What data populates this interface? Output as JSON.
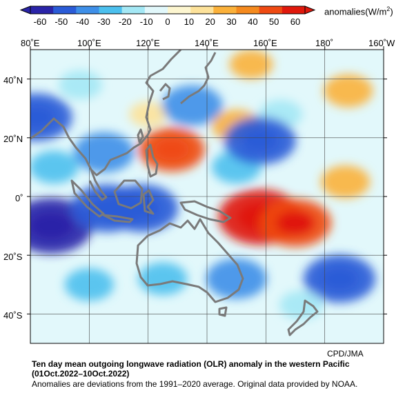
{
  "colorbar": {
    "ticks": [
      "-60",
      "-50",
      "-40",
      "-30",
      "-20",
      "-10",
      "0",
      "10",
      "20",
      "30",
      "40",
      "50",
      "60"
    ],
    "colors": [
      "#2a24a8",
      "#2a5bd7",
      "#3e8fe8",
      "#4cc0ee",
      "#a4e8f5",
      "#e2f8fb",
      "#fdf6d0",
      "#fde29a",
      "#fbb13a",
      "#f58a1e",
      "#ef4a12",
      "#e0180c"
    ],
    "unit_prefix": "anomalies(W/m",
    "unit_sup": "2",
    "unit_suffix": ")"
  },
  "map": {
    "lon_labels": [
      "80˚E",
      "100˚E",
      "120˚E",
      "140˚E",
      "160˚E",
      "180˚",
      "160˚W"
    ],
    "lat_labels": [
      "40˚N",
      "20˚N",
      "0˚",
      "20˚S",
      "40˚S"
    ],
    "lon_range": [
      80,
      200
    ],
    "lat_range": [
      -50,
      50
    ],
    "coastline_color": "#7a7a7a",
    "grid_color": "#444444"
  },
  "credit": "CPD/JMA",
  "caption": {
    "line1": "Ten day mean outgoing longwave radiation (OLR) anomaly in the western Pacific",
    "line2": "(01Oct.2022–10Oct.2022)",
    "line3": "Anomalies are deviations from the 1991–2020 average. Original data provided by NOAA."
  },
  "anomaly_features": [
    {
      "lon": 158,
      "lat": -7,
      "value": 55
    },
    {
      "lon": 170,
      "lat": -9,
      "value": 45
    },
    {
      "lon": 128,
      "lat": 16,
      "value": 40
    },
    {
      "lon": 150,
      "lat": 24,
      "value": 25
    },
    {
      "lon": 187,
      "lat": 5,
      "value": 25
    },
    {
      "lon": 188,
      "lat": 36,
      "value": 25
    },
    {
      "lon": 155,
      "lat": 45,
      "value": 20
    },
    {
      "lon": 120,
      "lat": 28,
      "value": 15
    },
    {
      "lon": 165,
      "lat": 28,
      "value": -20
    },
    {
      "lon": 150,
      "lat": 10,
      "value": -25
    },
    {
      "lon": 87,
      "lat": -10,
      "value": -55
    },
    {
      "lon": 106,
      "lat": -4,
      "value": -45
    },
    {
      "lon": 118,
      "lat": -4,
      "value": -45
    },
    {
      "lon": 158,
      "lat": 19,
      "value": -45
    },
    {
      "lon": 105,
      "lat": 15,
      "value": -35
    },
    {
      "lon": 135,
      "lat": 31,
      "value": -35
    },
    {
      "lon": 185,
      "lat": -28,
      "value": -45
    },
    {
      "lon": 150,
      "lat": -28,
      "value": -35
    },
    {
      "lon": 125,
      "lat": -28,
      "value": -25
    },
    {
      "lon": 100,
      "lat": -30,
      "value": -25
    },
    {
      "lon": 82,
      "lat": 27,
      "value": -45
    },
    {
      "lon": 97,
      "lat": 38,
      "value": -20
    },
    {
      "lon": 88,
      "lat": 10,
      "value": -25
    },
    {
      "lon": 172,
      "lat": -37,
      "value": -20
    }
  ]
}
